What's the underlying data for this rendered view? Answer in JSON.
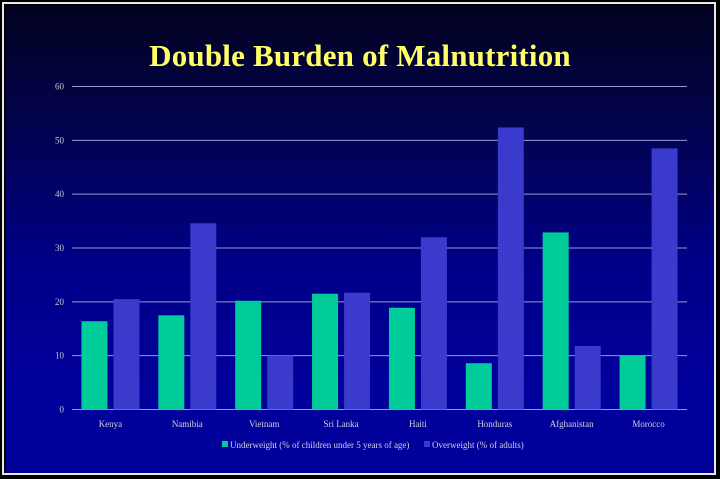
{
  "slide": {
    "title": "Double Burden of Malnutrition"
  },
  "colors": {
    "underweight": "#00CC99",
    "overweight": "#3A3ACC",
    "gridline": "#9a9ac8",
    "title": "#FFFF66"
  },
  "chart_data": {
    "type": "bar",
    "title": "Double Burden of Malnutrition",
    "xlabel": "",
    "ylabel": "",
    "ylim": [
      0,
      60
    ],
    "yticks": [
      0,
      10,
      20,
      30,
      40,
      50,
      60
    ],
    "grid": true,
    "legend_position": "bottom",
    "categories": [
      "Kenya",
      "Namibia",
      "Vietnam",
      "Sri Lanka",
      "Haiti",
      "Honduras",
      "Afghanistan",
      "Morocco"
    ],
    "series": [
      {
        "name": "Underweight (% of children under 5 years of age)",
        "values": [
          16.4,
          17.5,
          20.2,
          21.5,
          18.9,
          8.6,
          32.9,
          10.0
        ]
      },
      {
        "name": "Overweight (% of adults)",
        "values": [
          20.5,
          34.6,
          10.0,
          21.7,
          32.0,
          52.4,
          11.8,
          48.5
        ]
      }
    ]
  }
}
